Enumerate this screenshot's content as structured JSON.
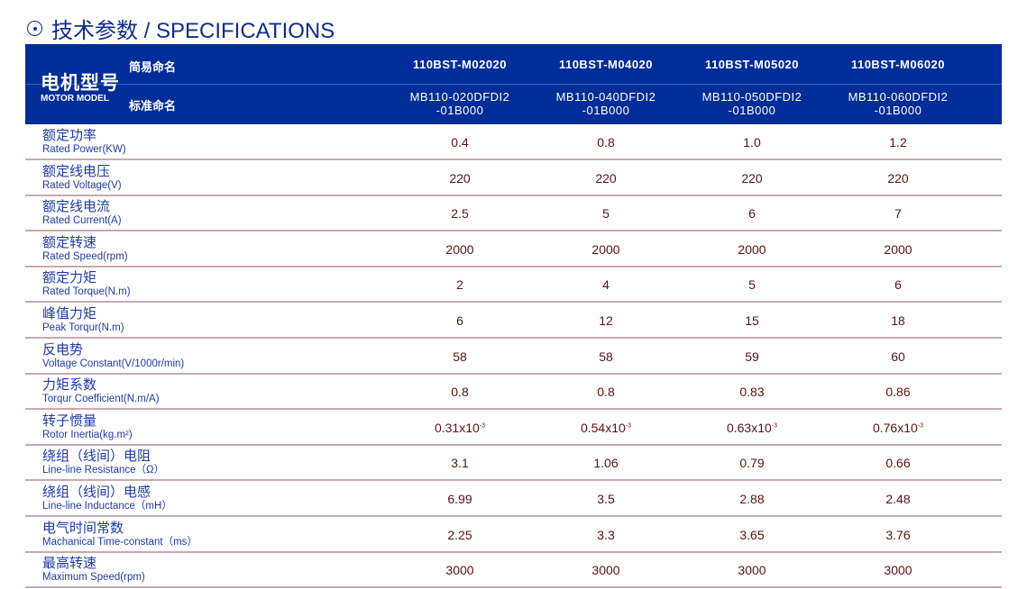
{
  "title": "技术参数 / SPECIFICATIONS",
  "header": {
    "model_cn": "电机型号",
    "model_en": "MOTOR MODEL",
    "short_name": "简易命名",
    "std_name": "标准命名",
    "models": [
      {
        "short": "110BST-M02020",
        "std1": "MB110-020DFDI2",
        "std2": "-01B000"
      },
      {
        "short": "110BST-M04020",
        "std1": "MB110-040DFDI2",
        "std2": "-01B000"
      },
      {
        "short": "110BST-M05020",
        "std1": "MB110-050DFDI2",
        "std2": "-01B000"
      },
      {
        "short": "110BST-M06020",
        "std1": "MB110-060DFDI2",
        "std2": "-01B000"
      }
    ]
  },
  "rows": [
    {
      "cn": "额定功率",
      "en": "Rated Power(KW)",
      "values": [
        "0.4",
        "0.8",
        "1.0",
        "1.2"
      ]
    },
    {
      "cn": "额定线电压",
      "en": "Rated Voltage(V)",
      "values": [
        "220",
        "220",
        "220",
        "220"
      ]
    },
    {
      "cn": "额定线电流",
      "en": "Rated Current(A)",
      "values": [
        "2.5",
        "5",
        "6",
        "7"
      ]
    },
    {
      "cn": "额定转速",
      "en": "Rated Speed(rpm)",
      "values": [
        "2000",
        "2000",
        "2000",
        "2000"
      ]
    },
    {
      "cn": "额定力矩",
      "en": "Rated Torque(N.m)",
      "values": [
        "2",
        "4",
        "5",
        "6"
      ]
    },
    {
      "cn": "峰值力矩",
      "en": "Peak Torqur(N.m)",
      "values": [
        "6",
        "12",
        "15",
        "18"
      ]
    },
    {
      "cn": "反电势",
      "en": "Voltage Constant(V/1000r/min)",
      "values": [
        "58",
        "58",
        "59",
        "60"
      ]
    },
    {
      "cn": "力矩系数",
      "en": "Torqur Coefficient(N.m/A)",
      "values": [
        "0.8",
        "0.8",
        "0.83",
        "0.86"
      ]
    },
    {
      "cn": "转子惯量",
      "en": "Rotor Inertia(kg.m²)",
      "values": [
        "0.31x10",
        "0.54x10",
        "0.63x10",
        "0.76x10"
      ],
      "exponent": "-3"
    },
    {
      "cn": "绕组（线间）电阻",
      "en": "Line-line Resistance（Ω）",
      "values": [
        "3.1",
        "1.06",
        "0.79",
        "0.66"
      ]
    },
    {
      "cn": "绕组（线间）电感",
      "en": "Line-line Inductance（mH）",
      "values": [
        "6.99",
        "3.5",
        "2.88",
        "2.48"
      ]
    },
    {
      "cn": "电气时间常数",
      "en": "Machanical Time-constant（ms）",
      "values": [
        "2.25",
        "3.3",
        "3.65",
        "3.76"
      ]
    },
    {
      "cn": "最高转速",
      "en": "Maximum Speed(rpm)",
      "values": [
        "3000",
        "3000",
        "3000",
        "3000"
      ]
    }
  ]
}
